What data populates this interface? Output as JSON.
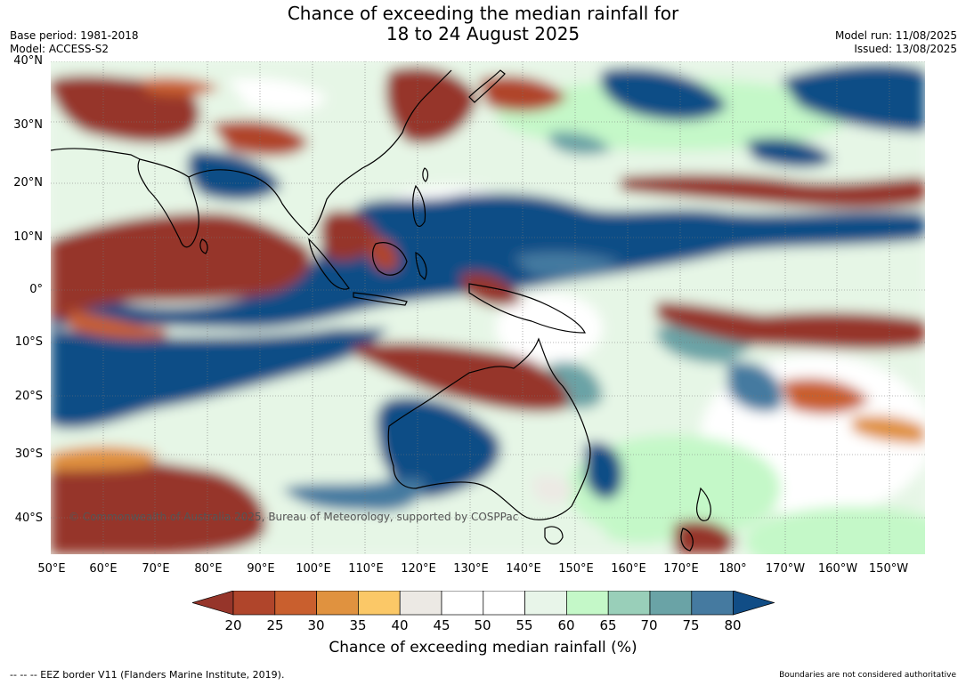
{
  "header": {
    "title_line1": "Chance of exceeding the median rainfall for",
    "title_line2": "18 to 24 August 2025",
    "base_period": "Base period: 1981-2018",
    "model": "Model: ACCESS-S2",
    "model_run": "Model run: 11/08/2025",
    "issued": "Issued: 13/08/2025"
  },
  "map": {
    "lat_labels": [
      "40°N",
      "30°N",
      "20°N",
      "10°N",
      "0°",
      "10°S",
      "20°S",
      "30°S",
      "40°S"
    ],
    "lon_labels": [
      "50°E",
      "60°E",
      "70°E",
      "80°E",
      "90°E",
      "100°E",
      "110°E",
      "120°E",
      "130°E",
      "140°E",
      "150°E",
      "160°E",
      "170°E",
      "180°",
      "170°W",
      "160°W",
      "150°W"
    ],
    "copyright": "© Commonwealth of Australia 2025, Bureau of Meteorology, supported by COSPPac"
  },
  "colorbar": {
    "title": "Chance of exceeding median rainfall (%)",
    "ticks": [
      "20",
      "25",
      "30",
      "35",
      "40",
      "45",
      "50",
      "55",
      "60",
      "65",
      "70",
      "75",
      "80"
    ],
    "colors": [
      "#96352a",
      "#b0452b",
      "#c95f2e",
      "#e0923f",
      "#fbc867",
      "#ece9e4",
      "#ffffff",
      "#ffffff",
      "#e8f5e9",
      "#c4f8c8",
      "#99cfb9",
      "#6aa3a6",
      "#457aa0",
      "#114d86"
    ]
  },
  "footer": {
    "eez": "--  --  -- EEZ border V11 (Flanders Marine Institute, 2019).",
    "boundaries": "Boundaries are not considered authoritative"
  }
}
